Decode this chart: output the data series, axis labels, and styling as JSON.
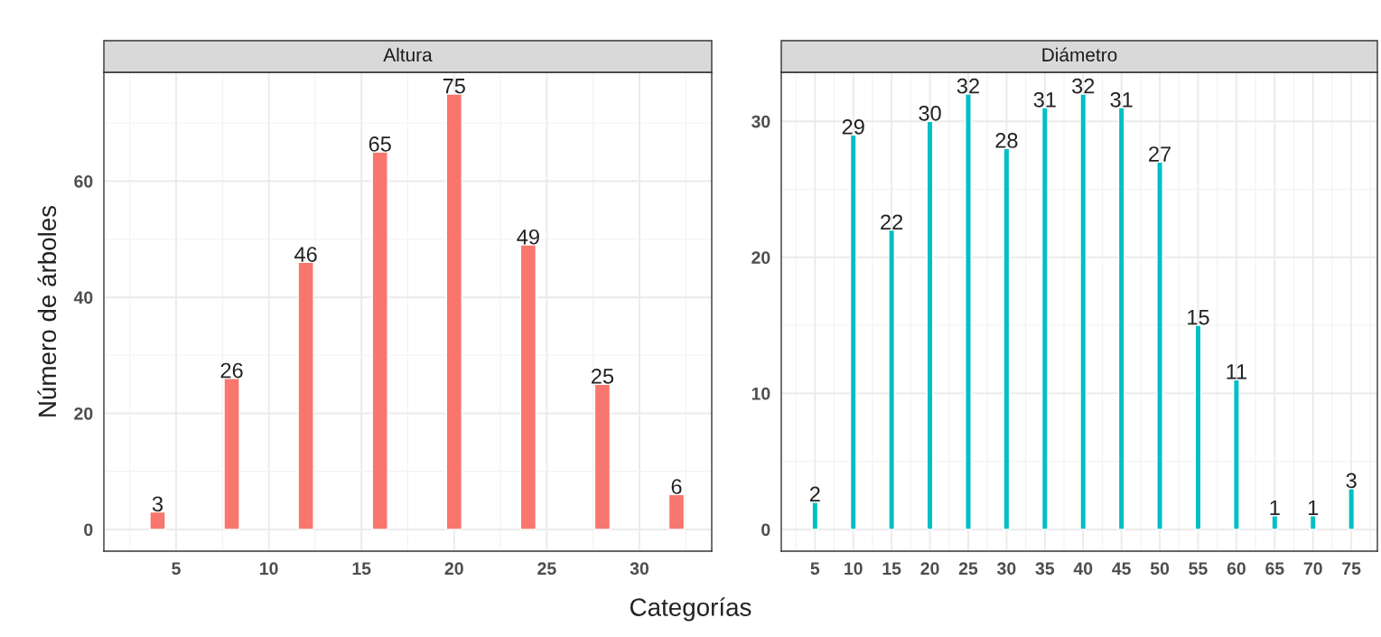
{
  "chart_data": [
    {
      "type": "bar",
      "title": "Altura",
      "xlabel": "Categorías",
      "ylabel": "Número de árboles",
      "x": [
        4,
        8,
        12,
        16,
        20,
        24,
        28,
        32
      ],
      "values": [
        3,
        26,
        46,
        65,
        75,
        49,
        25,
        6
      ],
      "color": "#f8766d",
      "xlim": [
        1.1,
        33.9
      ],
      "ylim": [
        -3.75,
        78.75
      ],
      "xticks": [
        5,
        10,
        15,
        20,
        25,
        30
      ],
      "yticks": [
        0,
        20,
        40,
        60
      ],
      "grid": true,
      "data_labels": true,
      "legend": false
    },
    {
      "type": "bar",
      "title": "Diámetro",
      "x": [
        5,
        10,
        15,
        20,
        25,
        30,
        35,
        40,
        45,
        50,
        55,
        60,
        65,
        70,
        75
      ],
      "values": [
        2,
        29,
        22,
        30,
        32,
        28,
        31,
        32,
        31,
        27,
        15,
        11,
        1,
        1,
        3
      ],
      "color": "#00bfc4",
      "xlim": [
        0.6,
        78.4
      ],
      "ylim": [
        -1.6,
        33.6
      ],
      "xticks": [
        5,
        10,
        15,
        20,
        25,
        30,
        35,
        40,
        45,
        50,
        55,
        60,
        65,
        70,
        75
      ],
      "yticks": [
        0,
        10,
        20,
        30
      ],
      "grid": true,
      "data_labels": true,
      "legend": false
    }
  ]
}
